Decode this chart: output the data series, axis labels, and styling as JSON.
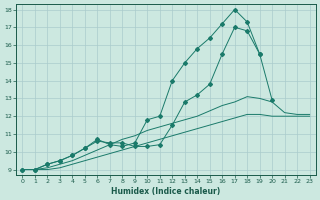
{
  "xlabel": "Humidex (Indice chaleur)",
  "background_color": "#cce8e0",
  "grid_color": "#aacccc",
  "line_color": "#1a7a6a",
  "xlim": [
    -0.5,
    23.5
  ],
  "ylim": [
    8.7,
    18.3
  ],
  "xticks": [
    0,
    1,
    2,
    3,
    4,
    5,
    6,
    7,
    8,
    9,
    10,
    11,
    12,
    13,
    14,
    15,
    16,
    17,
    18,
    19,
    20,
    21,
    22,
    23
  ],
  "yticks": [
    9,
    10,
    11,
    12,
    13,
    14,
    15,
    16,
    17,
    18
  ],
  "series": [
    {
      "x": [
        0,
        1,
        2,
        3,
        4,
        5,
        6,
        7,
        8,
        9,
        10,
        11,
        12,
        13,
        14,
        15,
        16,
        17,
        18,
        19,
        20,
        21,
        22,
        23
      ],
      "y": [
        9,
        9,
        9,
        9.1,
        9.3,
        9.5,
        9.7,
        9.9,
        10.1,
        10.3,
        10.5,
        10.7,
        10.9,
        11.1,
        11.3,
        11.5,
        11.7,
        11.9,
        12.1,
        12.1,
        12.0,
        12.0,
        12.0,
        12.0
      ],
      "marker": false
    },
    {
      "x": [
        0,
        1,
        2,
        3,
        4,
        5,
        6,
        7,
        8,
        9,
        10,
        11,
        12,
        13,
        14,
        15,
        16,
        17,
        18,
        19,
        20,
        21,
        22,
        23
      ],
      "y": [
        9,
        9,
        9.1,
        9.3,
        9.5,
        9.8,
        10.1,
        10.4,
        10.7,
        10.9,
        11.2,
        11.4,
        11.6,
        11.8,
        12.0,
        12.3,
        12.6,
        12.8,
        13.1,
        13.0,
        12.8,
        12.2,
        12.1,
        12.1
      ],
      "marker": false
    },
    {
      "x": [
        0,
        1,
        2,
        3,
        4,
        5,
        6,
        7,
        8,
        9,
        10,
        11,
        12,
        13,
        14,
        15,
        16,
        17,
        18,
        19,
        20,
        21,
        22,
        23
      ],
      "y": [
        9,
        9,
        9.3,
        9.5,
        9.8,
        10.2,
        10.6,
        10.5,
        10.5,
        10.3,
        10.3,
        10.4,
        11.5,
        12.8,
        13.2,
        13.8,
        15.5,
        17.0,
        16.8,
        15.5,
        12.9,
        null,
        null,
        null
      ],
      "marker": true
    },
    {
      "x": [
        0,
        1,
        2,
        3,
        4,
        5,
        6,
        7,
        8,
        9,
        10,
        11,
        12,
        13,
        14,
        15,
        16,
        17,
        18,
        19,
        20,
        21,
        22,
        23
      ],
      "y": [
        9,
        9,
        9.3,
        9.5,
        9.8,
        10.2,
        10.7,
        10.4,
        10.3,
        10.5,
        11.8,
        12.0,
        14.0,
        15.0,
        15.8,
        16.4,
        17.2,
        18.0,
        17.3,
        15.5,
        null,
        null,
        null,
        null
      ],
      "marker": true
    }
  ]
}
